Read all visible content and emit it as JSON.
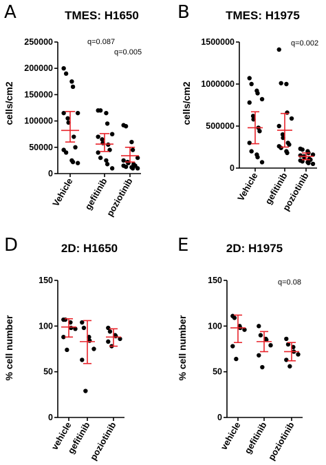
{
  "chart_data": [
    {
      "type": "scatter",
      "panel_label": "A",
      "title": "TMES: H1650",
      "ylabel": "cells/cm2",
      "categories": [
        "Vehicle",
        "gefitinib",
        "poziotinib"
      ],
      "ylim": [
        0,
        250000
      ],
      "yticks": [
        0,
        50000,
        100000,
        150000,
        200000,
        250000
      ],
      "ytick_labels": [
        "0",
        "50000",
        "100000",
        "150000",
        "200000",
        "250000"
      ],
      "annotations": [
        "q=0.087",
        "q=0.005"
      ],
      "points": [
        [
          200000,
          190000,
          175000,
          165000,
          115000,
          115000,
          105000,
          97000,
          70000,
          50000,
          45000,
          40000,
          25000,
          22000,
          20000
        ],
        [
          120000,
          120000,
          115000,
          95000,
          75000,
          70000,
          65000,
          58000,
          55000,
          45000,
          40000,
          30000,
          25000,
          18000,
          10000
        ],
        [
          92000,
          90000,
          60000,
          45000,
          30000,
          25000,
          22000,
          20000,
          18000,
          15000,
          15000,
          13000,
          12000,
          10000,
          10000
        ]
      ],
      "mean": [
        82000,
        56000,
        34000
      ],
      "error": [
        [
          60000,
          118000
        ],
        [
          42000,
          76000
        ],
        [
          22000,
          50000
        ]
      ]
    },
    {
      "type": "scatter",
      "panel_label": "B",
      "title": "TMES: H1975",
      "ylabel": "cells/cm2",
      "categories": [
        "Vehicle",
        "gefitinib",
        "poziotinib"
      ],
      "ylim": [
        0,
        1500000
      ],
      "yticks": [
        0,
        500000,
        1000000,
        1500000
      ],
      "ytick_labels": [
        "0",
        "500000",
        "1000000",
        "1500000"
      ],
      "annotations": [
        "q=0.002"
      ],
      "points": [
        [
          1070000,
          1000000,
          920000,
          890000,
          820000,
          780000,
          620000,
          580000,
          480000,
          440000,
          300000,
          200000,
          160000,
          130000,
          70000
        ],
        [
          1410000,
          1010000,
          1000000,
          660000,
          590000,
          500000,
          400000,
          360000,
          300000,
          280000,
          260000,
          240000,
          200000,
          180000
        ],
        [
          230000,
          220000,
          200000,
          180000,
          160000,
          150000,
          140000,
          120000,
          110000,
          100000,
          90000,
          80000,
          70000,
          60000,
          50000
        ]
      ],
      "mean": [
        480000,
        450000,
        140000
      ],
      "error": [
        [
          290000,
          670000
        ],
        [
          250000,
          650000
        ],
        [
          100000,
          180000
        ]
      ]
    },
    {
      "type": "scatter",
      "panel_label": "D",
      "title": "2D: H1650",
      "ylabel": "% cell number",
      "categories": [
        "vehicle",
        "gefitinib",
        "poziotinib"
      ],
      "ylim": [
        0,
        150
      ],
      "yticks": [
        0,
        50,
        100,
        150
      ],
      "ytick_labels": [
        "0",
        "50",
        "100",
        "150"
      ],
      "annotations": [],
      "points": [
        [
          107,
          107,
          104,
          98,
          97,
          88,
          74
        ],
        [
          104,
          98,
          88,
          84,
          75,
          63,
          29
        ],
        [
          98,
          94,
          90,
          89,
          86,
          83,
          78
        ]
      ],
      "mean": [
        99,
        83,
        88
      ],
      "error": [
        [
          88,
          108
        ],
        [
          59,
          106
        ],
        [
          78,
          97
        ]
      ]
    },
    {
      "type": "scatter",
      "panel_label": "E",
      "title": "2D: H1975",
      "ylabel": "% cell number",
      "categories": [
        "vehicle",
        "gefitinib",
        "poziotinib"
      ],
      "ylim": [
        0,
        150
      ],
      "yticks": [
        0,
        50,
        100,
        150
      ],
      "ytick_labels": [
        "0",
        "50",
        "100",
        "150"
      ],
      "annotations": [
        "q=0.08"
      ],
      "points": [
        [
          111,
          109,
          100,
          98,
          96,
          78,
          64
        ],
        [
          100,
          90,
          86,
          85,
          79,
          68,
          55
        ],
        [
          86,
          80,
          77,
          72,
          69,
          63,
          56
        ]
      ],
      "mean": [
        98,
        83,
        72
      ],
      "error": [
        [
          82,
          112
        ],
        [
          72,
          94
        ],
        [
          62,
          82
        ]
      ]
    }
  ]
}
